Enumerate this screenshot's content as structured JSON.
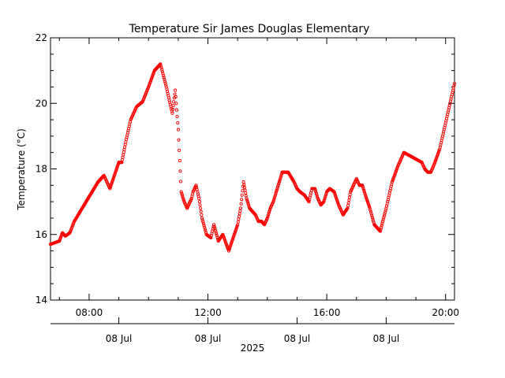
{
  "chart_data": {
    "type": "scatter",
    "title": "Temperature Sir James Douglas Elementary",
    "ylabel": "Temperature (°C)",
    "xlabel": "2025",
    "ylim": [
      14,
      22
    ],
    "yticks": [
      "14",
      "16",
      "18",
      "20",
      "22"
    ],
    "xlim_hours": [
      6.7,
      20.3
    ],
    "xticks_top": [
      {
        "hour": 8,
        "label": "08:00"
      },
      {
        "hour": 12,
        "label": "12:00"
      },
      {
        "hour": 16,
        "label": "16:00"
      },
      {
        "hour": 20,
        "label": "20:00"
      }
    ],
    "xticks_bottom": [
      {
        "hour": 9,
        "label": "08 Jul"
      },
      {
        "hour": 12,
        "label": "08 Jul"
      },
      {
        "hour": 15,
        "label": "08 Jul"
      },
      {
        "hour": 18,
        "label": "08 Jul"
      }
    ],
    "marker_color": "#ff0000",
    "grid": false,
    "series": [
      {
        "x": [
          6.7,
          6.85,
          7.0,
          7.1,
          7.2,
          7.35,
          7.5,
          7.7,
          7.9,
          8.1,
          8.3,
          8.5,
          8.7,
          8.85,
          9.0,
          9.1,
          9.25,
          9.4,
          9.6,
          9.8,
          10.0,
          10.2,
          10.4,
          10.6,
          10.8,
          10.9,
          11.0,
          11.1,
          11.2,
          11.3,
          11.35,
          11.4,
          11.45,
          11.5,
          11.6,
          11.7,
          11.8,
          11.95,
          12.1,
          12.2,
          12.35,
          12.5,
          12.7,
          12.85,
          13.0,
          13.1,
          13.2,
          13.3,
          13.4,
          13.5,
          13.6,
          13.7,
          13.8,
          13.9,
          14.0,
          14.1,
          14.2,
          14.3,
          14.4,
          14.5,
          14.7,
          14.9,
          15.0,
          15.1,
          15.25,
          15.4,
          15.5,
          15.6,
          15.7,
          15.8,
          15.9,
          16.0,
          16.1,
          16.25,
          16.4,
          16.55,
          16.7,
          16.8,
          17.0,
          17.1,
          17.2,
          17.3,
          17.45,
          17.6,
          17.8,
          18.0,
          18.2,
          18.4,
          18.6,
          18.8,
          19.0,
          19.2,
          19.3,
          19.4,
          19.5,
          19.6,
          19.8,
          20.0,
          20.15,
          20.3
        ],
        "y": [
          15.7,
          15.75,
          15.8,
          16.05,
          15.95,
          16.05,
          16.4,
          16.7,
          17.0,
          17.3,
          17.6,
          17.8,
          17.4,
          17.8,
          18.2,
          18.2,
          18.9,
          19.5,
          19.9,
          20.05,
          20.5,
          21.0,
          21.2,
          20.5,
          19.7,
          20.4,
          19.2,
          17.3,
          17.0,
          16.8,
          16.9,
          17.0,
          17.1,
          17.3,
          17.5,
          17.1,
          16.5,
          16.0,
          15.9,
          16.3,
          15.8,
          16.0,
          15.5,
          15.9,
          16.3,
          16.8,
          17.6,
          17.1,
          16.8,
          16.7,
          16.6,
          16.4,
          16.4,
          16.3,
          16.5,
          16.8,
          17.0,
          17.3,
          17.6,
          17.9,
          17.9,
          17.6,
          17.4,
          17.3,
          17.2,
          17.0,
          17.4,
          17.4,
          17.1,
          16.9,
          17.0,
          17.3,
          17.4,
          17.3,
          16.9,
          16.6,
          16.8,
          17.3,
          17.7,
          17.5,
          17.5,
          17.2,
          16.8,
          16.3,
          16.1,
          16.8,
          17.6,
          18.1,
          18.5,
          18.4,
          18.3,
          18.2,
          18.0,
          17.9,
          17.9,
          18.1,
          18.6,
          19.4,
          20.0,
          20.6
        ]
      }
    ]
  }
}
